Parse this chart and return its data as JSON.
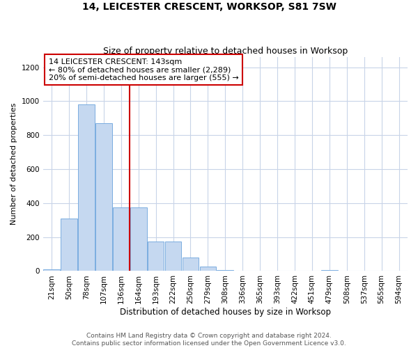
{
  "title": "14, LEICESTER CRESCENT, WORKSOP, S81 7SW",
  "subtitle": "Size of property relative to detached houses in Worksop",
  "xlabel": "Distribution of detached houses by size in Worksop",
  "ylabel": "Number of detached properties",
  "categories": [
    "21sqm",
    "50sqm",
    "78sqm",
    "107sqm",
    "136sqm",
    "164sqm",
    "193sqm",
    "222sqm",
    "250sqm",
    "279sqm",
    "308sqm",
    "336sqm",
    "365sqm",
    "393sqm",
    "422sqm",
    "451sqm",
    "479sqm",
    "508sqm",
    "537sqm",
    "565sqm",
    "594sqm"
  ],
  "values": [
    10,
    310,
    980,
    870,
    375,
    375,
    175,
    175,
    80,
    25,
    5,
    0,
    0,
    0,
    0,
    0,
    5,
    0,
    0,
    0,
    0
  ],
  "bar_color": "#c5d8f0",
  "bar_edge_color": "#7aade0",
  "vline_x": 4.5,
  "annotation_text": "14 LEICESTER CRESCENT: 143sqm\n← 80% of detached houses are smaller (2,289)\n20% of semi-detached houses are larger (555) →",
  "annotation_box_color": "#ffffff",
  "annotation_box_edge_color": "#cc0000",
  "vline_color": "#cc0000",
  "ylim": [
    0,
    1260
  ],
  "yticks": [
    0,
    200,
    400,
    600,
    800,
    1000,
    1200
  ],
  "background_color": "#ffffff",
  "grid_color": "#c8d4e8",
  "footer": "Contains HM Land Registry data © Crown copyright and database right 2024.\nContains public sector information licensed under the Open Government Licence v3.0.",
  "title_fontsize": 10,
  "subtitle_fontsize": 9,
  "xlabel_fontsize": 8.5,
  "ylabel_fontsize": 8,
  "tick_fontsize": 7.5,
  "annotation_fontsize": 8,
  "footer_fontsize": 6.5
}
